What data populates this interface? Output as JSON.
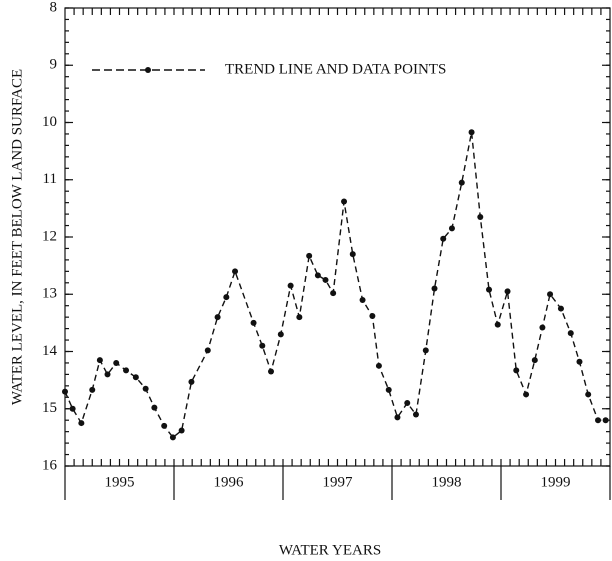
{
  "chart_data": {
    "type": "line",
    "x_label": "WATER YEARS",
    "y_label": "WATER LEVEL, IN FEET BELOW LAND SURFACE",
    "xlim": [
      1994.5,
      1999.5
    ],
    "xticks": [
      1995,
      1996,
      1997,
      1998,
      1999
    ],
    "ylim": [
      16,
      8
    ],
    "yticks": [
      8,
      9,
      10,
      11,
      12,
      13,
      14,
      15,
      16
    ],
    "legend": "upper left",
    "series": [
      {
        "name": "TREND LINE AND DATA POINTS",
        "color": "#111111",
        "x": [
          1994.5,
          1994.57,
          1994.65,
          1994.75,
          1994.82,
          1994.89,
          1994.97,
          1995.06,
          1995.15,
          1995.24,
          1995.32,
          1995.41,
          1995.49,
          1995.57,
          1995.66,
          1995.81,
          1995.9,
          1995.98,
          1996.06,
          1996.23,
          1996.31,
          1996.39,
          1996.48,
          1996.57,
          1996.65,
          1996.74,
          1996.82,
          1996.89,
          1996.96,
          1997.06,
          1997.14,
          1997.23,
          1997.32,
          1997.38,
          1997.47,
          1997.55,
          1997.64,
          1997.72,
          1997.81,
          1997.89,
          1997.97,
          1998.05,
          1998.14,
          1998.23,
          1998.31,
          1998.39,
          1998.47,
          1998.56,
          1998.64,
          1998.73,
          1998.81,
          1998.88,
          1998.95,
          1999.05,
          1999.14,
          1999.22,
          1999.3,
          1999.39,
          1999.46
        ],
        "values": [
          14.7,
          15.0,
          15.25,
          14.67,
          14.15,
          14.4,
          14.2,
          14.33,
          14.45,
          14.65,
          14.98,
          15.3,
          15.5,
          15.38,
          14.53,
          13.98,
          13.4,
          13.05,
          12.6,
          13.5,
          13.9,
          14.35,
          13.7,
          12.85,
          13.4,
          12.33,
          12.67,
          12.75,
          12.98,
          11.38,
          12.3,
          13.1,
          13.38,
          14.25,
          14.67,
          15.15,
          14.9,
          15.1,
          13.98,
          12.9,
          12.03,
          11.85,
          11.05,
          10.17,
          11.65,
          12.92,
          13.53,
          12.95,
          14.33,
          14.75,
          14.15,
          13.58,
          13.0,
          13.25,
          13.68,
          14.18,
          14.75,
          15.2,
          15.2
        ]
      }
    ]
  }
}
